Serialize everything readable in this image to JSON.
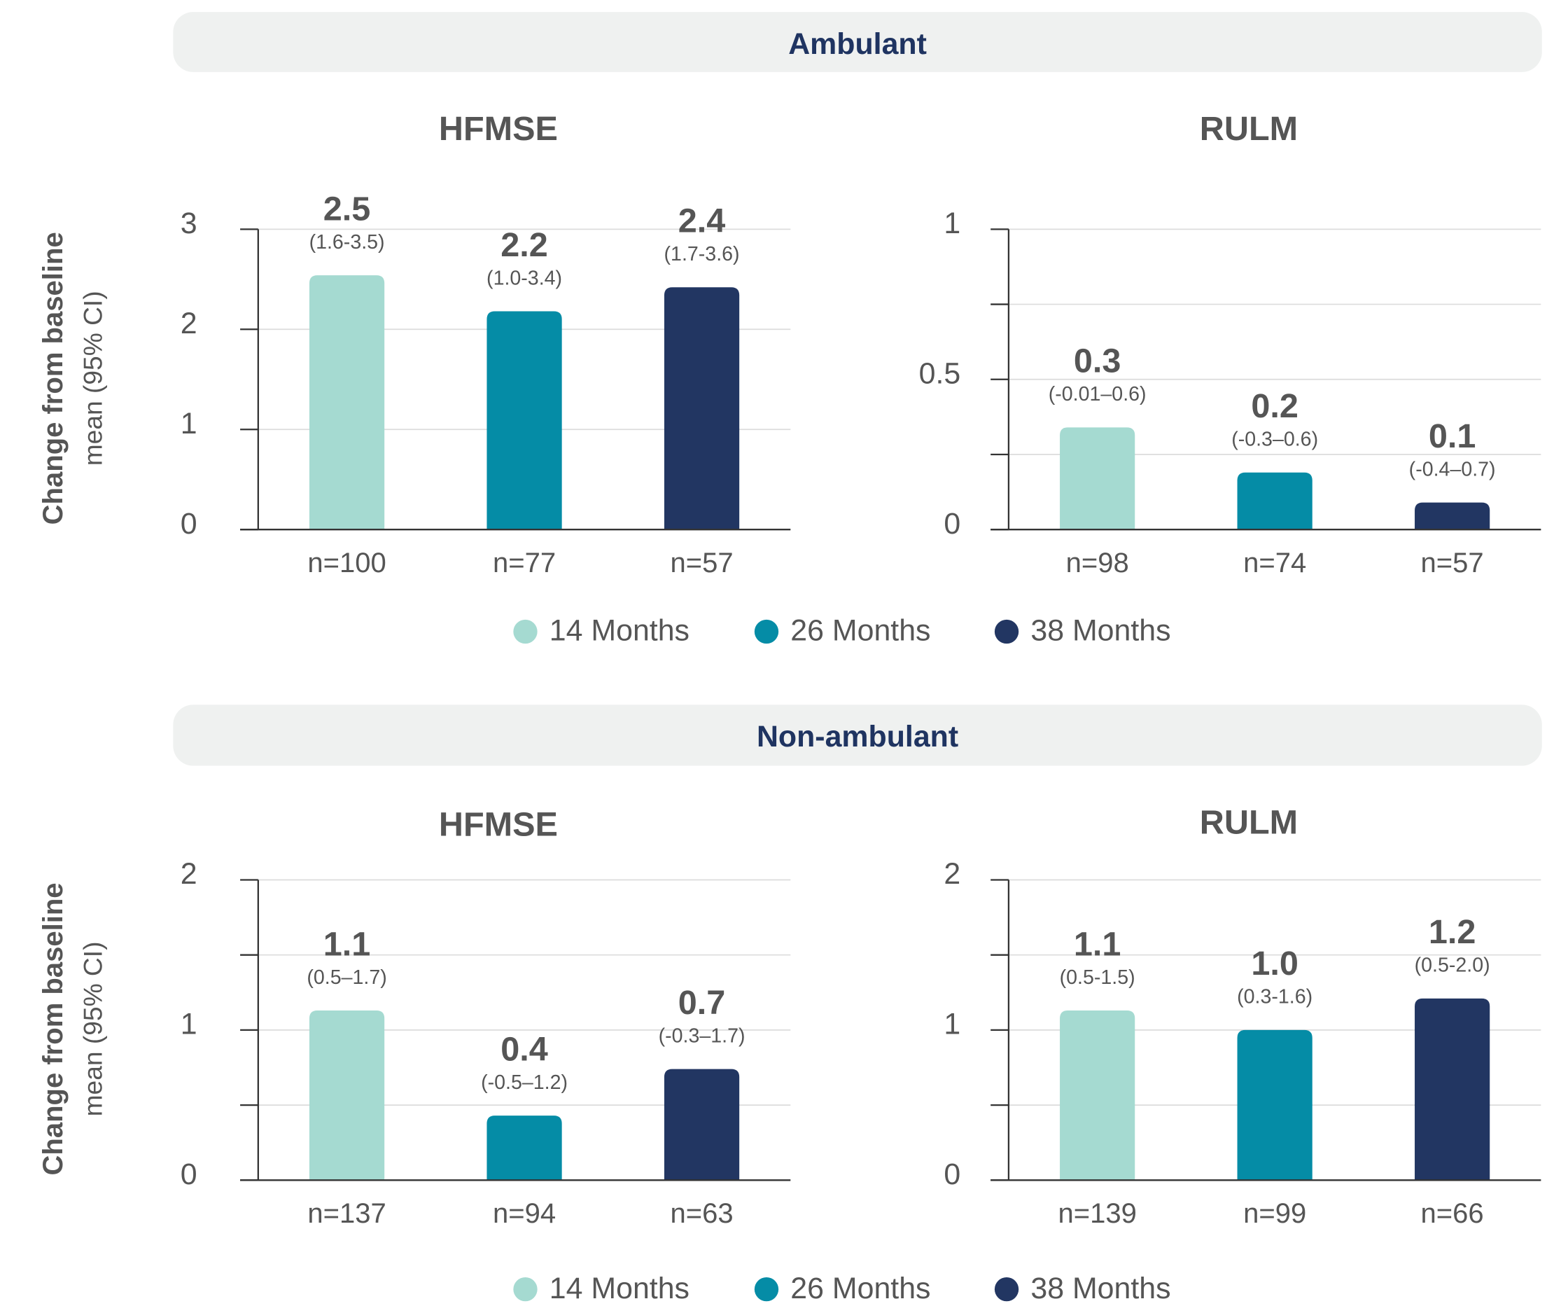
{
  "sections": [
    {
      "title": "Ambulant",
      "legend": [
        {
          "name": "14 Months",
          "color": "#a5dad1"
        },
        {
          "name": "26 Months",
          "color": "#058ca6"
        },
        {
          "name": "38 Months",
          "color": "#223662"
        }
      ]
    },
    {
      "title": "Non-ambulant",
      "legend": [
        {
          "name": "14 Months",
          "color": "#a5dad1"
        },
        {
          "name": "26 Months",
          "color": "#058ca6"
        },
        {
          "name": "38 Months",
          "color": "#223662"
        }
      ]
    }
  ],
  "chart_data": [
    {
      "type": "bar",
      "title": "HFMSE",
      "ylabel": "Change from baseline",
      "ylabel_sub": "mean (95% CI)",
      "categories": [
        "n=100",
        "n=77",
        "n=57"
      ],
      "values": [
        2.54,
        2.18,
        2.42
      ],
      "value_labels": [
        "2.5",
        "2.2",
        "2.4"
      ],
      "ci_labels": [
        "(1.6-3.5)",
        "(1.0-3.4)",
        "(1.7-3.6)"
      ],
      "colors": [
        "#a5dad1",
        "#058ca6",
        "#223662"
      ],
      "ylim": [
        0,
        3
      ],
      "yticks": [
        0,
        1,
        2,
        3
      ],
      "minor_yticks": [],
      "grid": true
    },
    {
      "type": "bar",
      "title": "RULM",
      "categories": [
        "n=98",
        "n=74",
        "n=57"
      ],
      "values": [
        0.34,
        0.19,
        0.09
      ],
      "value_labels": [
        "0.3",
        "0.2",
        "0.1"
      ],
      "ci_labels": [
        "(-0.01–0.6)",
        "(-0.3–0.6)",
        "(-0.4–0.7)"
      ],
      "colors": [
        "#a5dad1",
        "#058ca6",
        "#223662"
      ],
      "ylim": [
        0,
        1
      ],
      "yticks": [
        0,
        0.5,
        1
      ],
      "minor_yticks": [
        0.25,
        0.75
      ],
      "grid": true
    },
    {
      "type": "bar",
      "title": "HFMSE",
      "ylabel": "Change from baseline",
      "ylabel_sub": "mean (95% CI)",
      "categories": [
        "n=137",
        "n=94",
        "n=63"
      ],
      "values": [
        1.13,
        0.43,
        0.74
      ],
      "value_labels": [
        "1.1",
        "0.4",
        "0.7"
      ],
      "ci_labels": [
        "(0.5–1.7)",
        "(-0.5–1.2)",
        "(-0.3–1.7)"
      ],
      "colors": [
        "#a5dad1",
        "#058ca6",
        "#223662"
      ],
      "ylim": [
        0,
        2
      ],
      "yticks": [
        0,
        1,
        2
      ],
      "minor_yticks": [
        0.5,
        1.5
      ],
      "grid": true
    },
    {
      "type": "bar",
      "title": "RULM",
      "categories": [
        "n=139",
        "n=99",
        "n=66"
      ],
      "values": [
        1.13,
        1.0,
        1.21
      ],
      "value_labels": [
        "1.1",
        "1.0",
        "1.2"
      ],
      "ci_labels": [
        "(0.5-1.5)",
        "(0.3-1.6)",
        "(0.5-2.0)"
      ],
      "colors": [
        "#a5dad1",
        "#058ca6",
        "#223662"
      ],
      "ylim": [
        0,
        2
      ],
      "yticks": [
        0,
        1,
        2
      ],
      "minor_yticks": [
        0.5,
        1.5
      ],
      "grid": true
    }
  ]
}
